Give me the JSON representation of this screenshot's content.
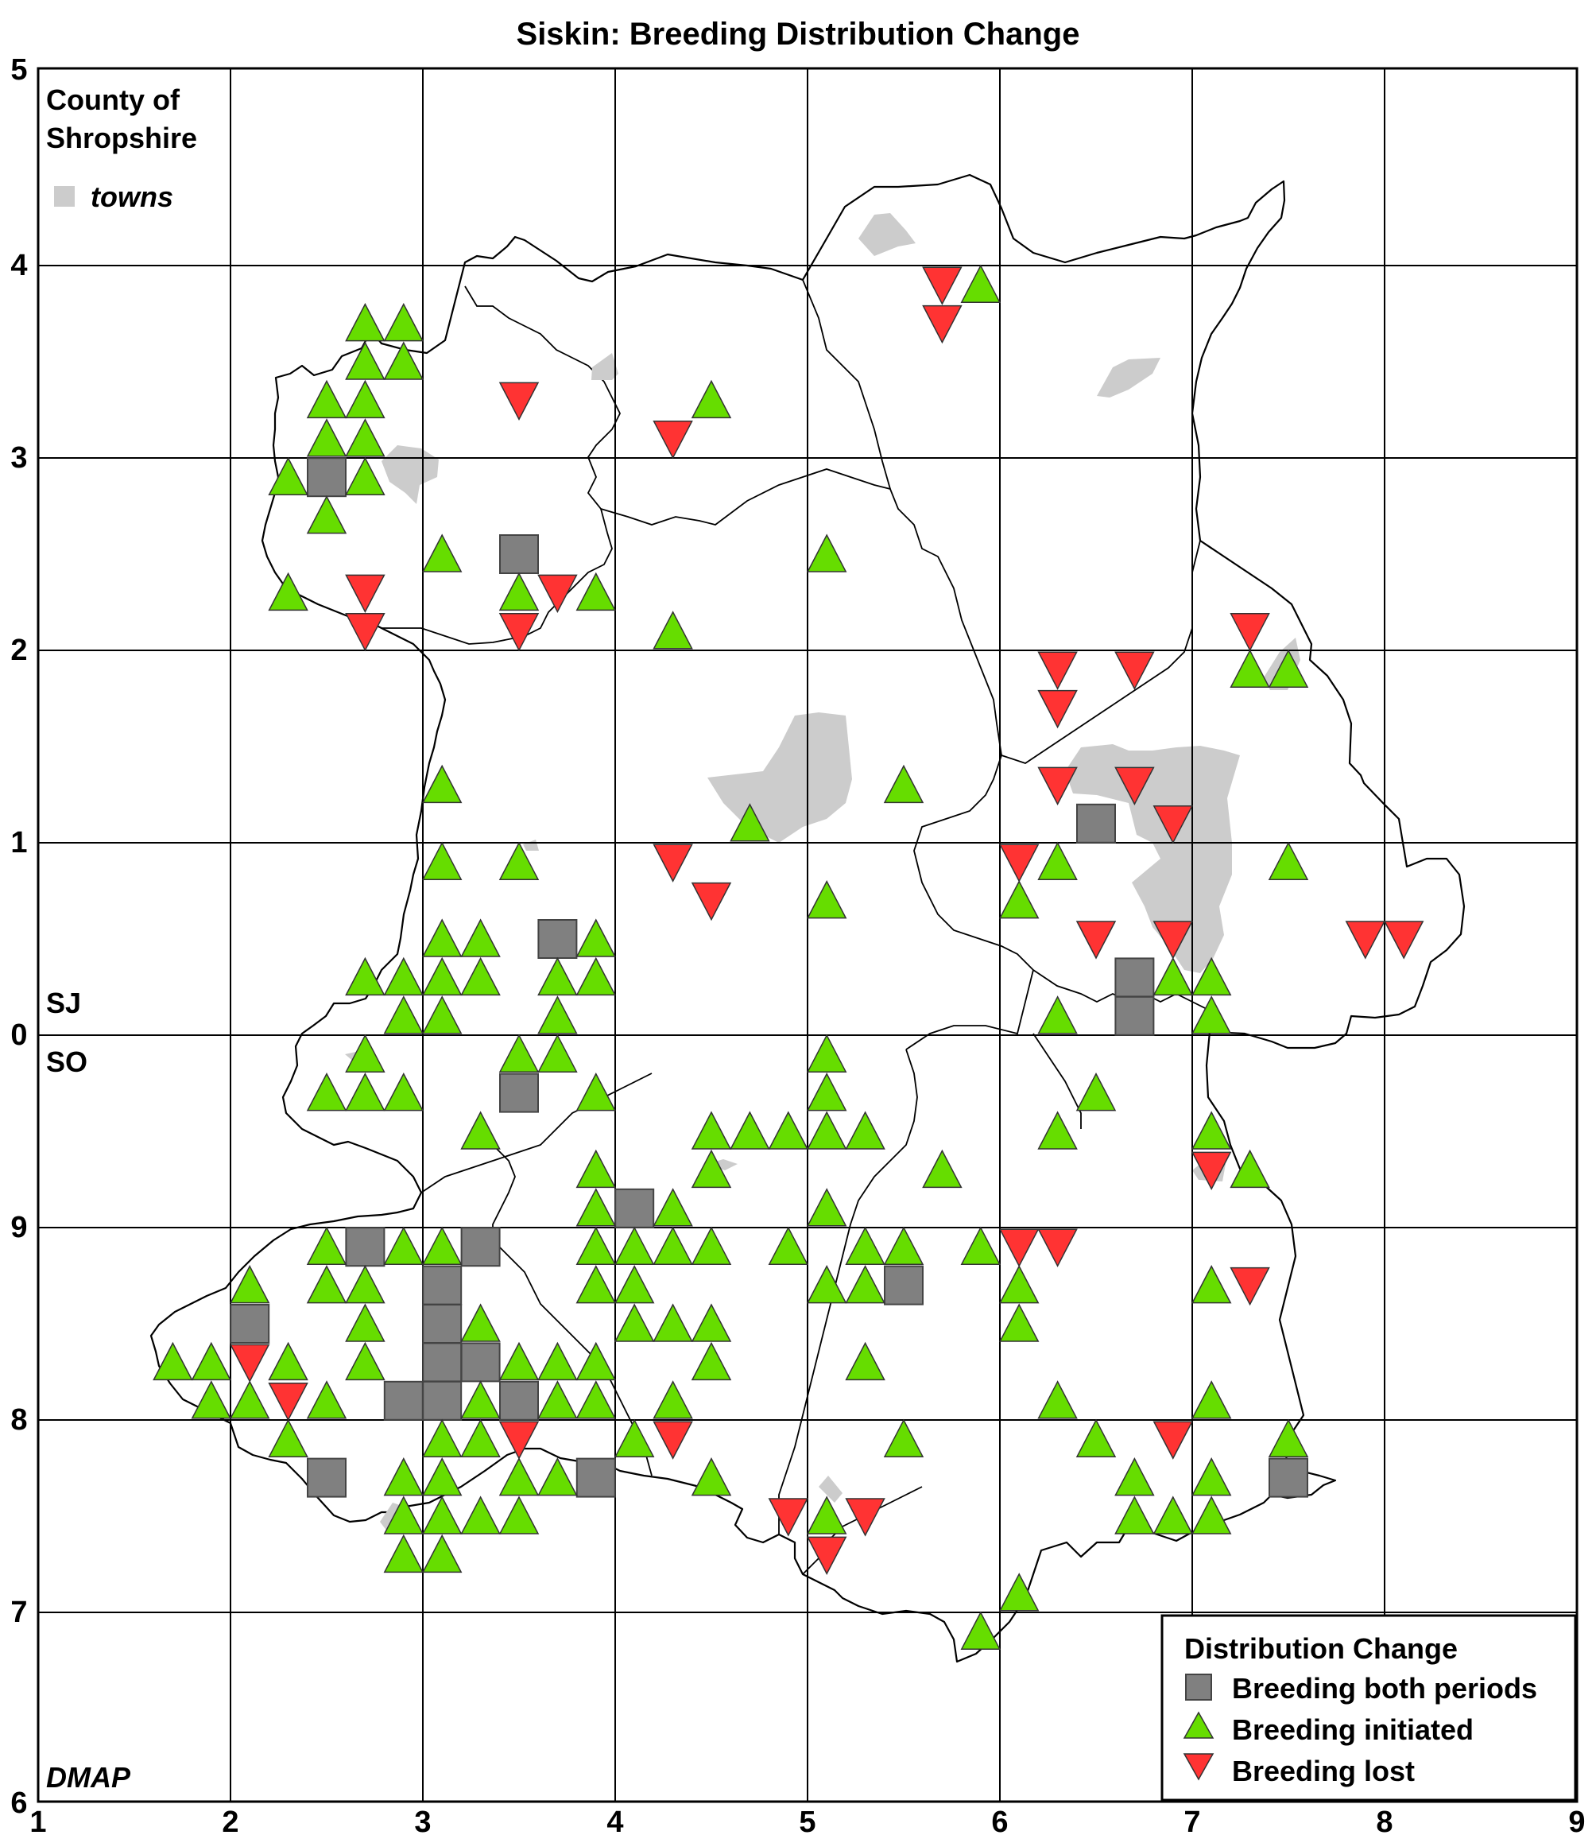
{
  "title": "Siskin: Breeding Distribution Change",
  "county_label_line1": "County of",
  "county_label_line2": "Shropshire",
  "towns_label": "towns",
  "grid_label_upper": "SJ",
  "grid_label_lower": "SO",
  "credit": "DMAP",
  "x_ticks": [
    "1",
    "2",
    "3",
    "4",
    "5",
    "6",
    "7",
    "8",
    "9"
  ],
  "y_ticks": [
    "5",
    "4",
    "3",
    "2",
    "1",
    "0",
    "9",
    "8",
    "7",
    "6"
  ],
  "colors": {
    "both": "#808080",
    "initiated": "#66dd00",
    "lost": "#ff3333",
    "town": "#cccccc",
    "grid": "#000000"
  },
  "legend": {
    "title": "Distribution Change",
    "both": "Breeding both periods",
    "initiated": "Breeding initiated",
    "lost": "Breeding lost"
  },
  "chart_data": {
    "type": "scatter",
    "title": "Siskin: Breeding Distribution Change",
    "x_range": [
      1,
      9
    ],
    "y_range_rows": [
      0,
      9
    ],
    "grid": true,
    "legend_placement": "bottom-right",
    "series": [
      {
        "name": "Breeding both periods",
        "symbol": "square",
        "points": [
          [
            2.5,
            2.9
          ],
          [
            3.5,
            2.5
          ],
          [
            3.7,
            0.5
          ],
          [
            3.5,
            -0.3
          ],
          [
            6.5,
            1.1
          ],
          [
            6.7,
            0.3
          ],
          [
            6.7,
            0.1
          ],
          [
            2.7,
            -1.1
          ],
          [
            3.3,
            -1.1
          ],
          [
            4.1,
            -0.9
          ],
          [
            5.5,
            -1.3
          ],
          [
            2.1,
            -1.5
          ],
          [
            3.1,
            -1.3
          ],
          [
            3.1,
            -1.5
          ],
          [
            3.1,
            -1.7
          ],
          [
            3.3,
            -1.7
          ],
          [
            2.9,
            -1.9
          ],
          [
            3.1,
            -1.9
          ],
          [
            3.5,
            -1.9
          ],
          [
            2.5,
            -2.3
          ],
          [
            3.9,
            -2.3
          ],
          [
            7.5,
            -2.3
          ]
        ]
      },
      {
        "name": "Breeding initiated",
        "symbol": "triangle-up",
        "points": [
          [
            2.7,
            3.7
          ],
          [
            2.9,
            3.7
          ],
          [
            2.7,
            3.5
          ],
          [
            2.9,
            3.5
          ],
          [
            2.5,
            3.3
          ],
          [
            2.7,
            3.3
          ],
          [
            2.5,
            3.1
          ],
          [
            2.7,
            3.1
          ],
          [
            2.3,
            2.9
          ],
          [
            2.7,
            2.9
          ],
          [
            2.5,
            2.7
          ],
          [
            2.3,
            2.3
          ],
          [
            3.1,
            2.5
          ],
          [
            3.5,
            2.3
          ],
          [
            3.9,
            2.3
          ],
          [
            4.5,
            3.3
          ],
          [
            5.9,
            3.9
          ],
          [
            5.1,
            2.5
          ],
          [
            4.3,
            2.1
          ],
          [
            7.3,
            1.9
          ],
          [
            7.5,
            1.9
          ],
          [
            3.1,
            1.3
          ],
          [
            5.5,
            1.3
          ],
          [
            4.7,
            1.1
          ],
          [
            3.1,
            0.9
          ],
          [
            3.5,
            0.9
          ],
          [
            6.3,
            0.9
          ],
          [
            7.5,
            0.9
          ],
          [
            5.1,
            0.7
          ],
          [
            6.1,
            0.7
          ],
          [
            3.1,
            0.5
          ],
          [
            3.3,
            0.5
          ],
          [
            3.9,
            0.5
          ],
          [
            2.7,
            0.3
          ],
          [
            2.9,
            0.3
          ],
          [
            3.1,
            0.3
          ],
          [
            3.3,
            0.3
          ],
          [
            3.7,
            0.3
          ],
          [
            3.9,
            0.3
          ],
          [
            6.9,
            0.3
          ],
          [
            7.1,
            0.3
          ],
          [
            2.9,
            0.1
          ],
          [
            3.1,
            0.1
          ],
          [
            3.7,
            0.1
          ],
          [
            6.3,
            0.1
          ],
          [
            7.1,
            0.1
          ],
          [
            2.7,
            -0.1
          ],
          [
            3.5,
            -0.1
          ],
          [
            3.7,
            -0.1
          ],
          [
            5.1,
            -0.1
          ],
          [
            2.5,
            -0.3
          ],
          [
            2.7,
            -0.3
          ],
          [
            2.9,
            -0.3
          ],
          [
            3.9,
            -0.3
          ],
          [
            5.1,
            -0.3
          ],
          [
            6.5,
            -0.3
          ],
          [
            3.3,
            -0.5
          ],
          [
            4.5,
            -0.5
          ],
          [
            4.7,
            -0.5
          ],
          [
            4.9,
            -0.5
          ],
          [
            5.1,
            -0.5
          ],
          [
            5.3,
            -0.5
          ],
          [
            6.3,
            -0.5
          ],
          [
            7.1,
            -0.5
          ],
          [
            3.9,
            -0.7
          ],
          [
            4.5,
            -0.7
          ],
          [
            5.7,
            -0.7
          ],
          [
            7.3,
            -0.7
          ],
          [
            3.9,
            -0.9
          ],
          [
            4.3,
            -0.9
          ],
          [
            5.1,
            -0.9
          ],
          [
            2.5,
            -1.1
          ],
          [
            2.9,
            -1.1
          ],
          [
            3.1,
            -1.1
          ],
          [
            3.9,
            -1.1
          ],
          [
            4.1,
            -1.1
          ],
          [
            4.3,
            -1.1
          ],
          [
            4.5,
            -1.1
          ],
          [
            4.9,
            -1.1
          ],
          [
            5.3,
            -1.1
          ],
          [
            5.5,
            -1.1
          ],
          [
            5.9,
            -1.1
          ],
          [
            2.1,
            -1.3
          ],
          [
            2.5,
            -1.3
          ],
          [
            2.7,
            -1.3
          ],
          [
            3.9,
            -1.3
          ],
          [
            4.1,
            -1.3
          ],
          [
            5.1,
            -1.3
          ],
          [
            5.3,
            -1.3
          ],
          [
            6.1,
            -1.3
          ],
          [
            7.1,
            -1.3
          ],
          [
            2.7,
            -1.5
          ],
          [
            3.3,
            -1.5
          ],
          [
            4.1,
            -1.5
          ],
          [
            4.3,
            -1.5
          ],
          [
            4.5,
            -1.5
          ],
          [
            6.1,
            -1.5
          ],
          [
            1.7,
            -1.7
          ],
          [
            1.9,
            -1.7
          ],
          [
            2.3,
            -1.7
          ],
          [
            2.7,
            -1.7
          ],
          [
            3.5,
            -1.7
          ],
          [
            3.7,
            -1.7
          ],
          [
            3.9,
            -1.7
          ],
          [
            4.5,
            -1.7
          ],
          [
            5.3,
            -1.7
          ],
          [
            1.9,
            -1.9
          ],
          [
            2.1,
            -1.9
          ],
          [
            2.5,
            -1.9
          ],
          [
            3.3,
            -1.9
          ],
          [
            3.7,
            -1.9
          ],
          [
            3.9,
            -1.9
          ],
          [
            4.3,
            -1.9
          ],
          [
            6.3,
            -1.9
          ],
          [
            7.1,
            -1.9
          ],
          [
            2.3,
            -2.1
          ],
          [
            3.1,
            -2.1
          ],
          [
            3.3,
            -2.1
          ],
          [
            4.1,
            -2.1
          ],
          [
            5.5,
            -2.1
          ],
          [
            6.5,
            -2.1
          ],
          [
            7.5,
            -2.1
          ],
          [
            2.9,
            -2.3
          ],
          [
            3.1,
            -2.3
          ],
          [
            3.5,
            -2.3
          ],
          [
            3.7,
            -2.3
          ],
          [
            4.5,
            -2.3
          ],
          [
            6.7,
            -2.3
          ],
          [
            7.1,
            -2.3
          ],
          [
            2.9,
            -2.5
          ],
          [
            3.1,
            -2.5
          ],
          [
            3.3,
            -2.5
          ],
          [
            3.5,
            -2.5
          ],
          [
            5.1,
            -2.5
          ],
          [
            6.7,
            -2.5
          ],
          [
            6.9,
            -2.5
          ],
          [
            7.1,
            -2.5
          ],
          [
            2.9,
            -2.7
          ],
          [
            3.1,
            -2.7
          ],
          [
            6.1,
            -2.9
          ],
          [
            5.9,
            -3.1
          ]
        ]
      },
      {
        "name": "Breeding lost",
        "symbol": "triangle-down",
        "points": [
          [
            5.7,
            3.9
          ],
          [
            5.7,
            3.7
          ],
          [
            3.5,
            3.3
          ],
          [
            4.3,
            3.1
          ],
          [
            2.7,
            2.3
          ],
          [
            3.7,
            2.3
          ],
          [
            2.7,
            2.1
          ],
          [
            3.5,
            2.1
          ],
          [
            7.3,
            2.1
          ],
          [
            6.3,
            1.9
          ],
          [
            6.7,
            1.9
          ],
          [
            6.3,
            1.7
          ],
          [
            6.3,
            1.3
          ],
          [
            6.7,
            1.3
          ],
          [
            6.9,
            1.1
          ],
          [
            4.3,
            0.9
          ],
          [
            6.1,
            0.9
          ],
          [
            4.5,
            0.7
          ],
          [
            6.5,
            0.5
          ],
          [
            6.9,
            0.5
          ],
          [
            7.9,
            0.5
          ],
          [
            8.1,
            0.5
          ],
          [
            7.1,
            -0.7
          ],
          [
            6.1,
            -1.1
          ],
          [
            6.3,
            -1.1
          ],
          [
            7.3,
            -1.3
          ],
          [
            2.1,
            -1.7
          ],
          [
            2.3,
            -1.9
          ],
          [
            3.5,
            -2.1
          ],
          [
            4.3,
            -2.1
          ],
          [
            6.9,
            -2.1
          ],
          [
            4.9,
            -2.5
          ],
          [
            5.3,
            -2.5
          ],
          [
            5.1,
            -2.7
          ]
        ]
      }
    ]
  }
}
